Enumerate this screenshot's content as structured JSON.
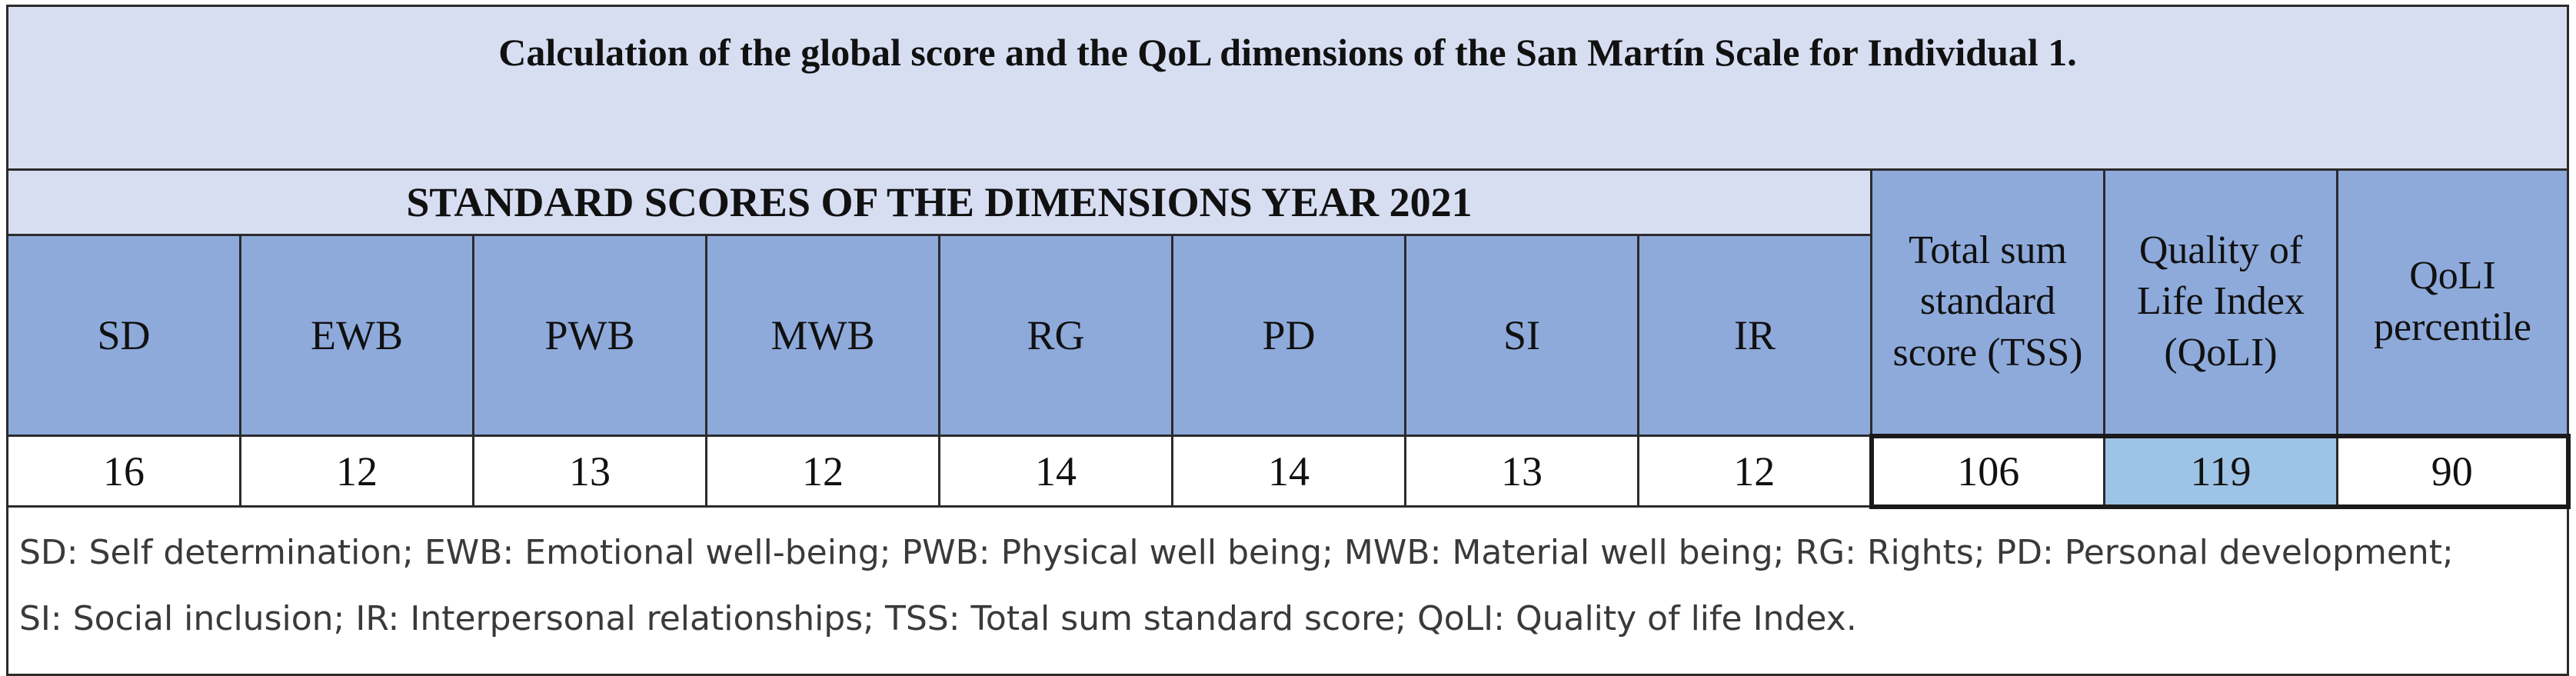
{
  "title": "Calculation of the global score and the QoL dimensions of the San Martín Scale for Individual 1.",
  "section_title": "STANDARD SCORES OF THE DIMENSIONS YEAR 2021",
  "dimension_headers": [
    "SD",
    "EWB",
    "PWB",
    "MWB",
    "RG",
    "PD",
    "SI",
    "IR"
  ],
  "dimension_values": [
    "16",
    "12",
    "13",
    "12",
    "14",
    "14",
    "13",
    "12"
  ],
  "summary_headers": {
    "tss": [
      "Total sum",
      "standard",
      "score  (TSS)"
    ],
    "qoli": [
      "Quality of",
      "Life Index",
      "(QoLI)"
    ],
    "percentile": [
      "QoLI",
      "percentile"
    ]
  },
  "summary_values": {
    "tss": "106",
    "qoli": "119",
    "percentile": "90"
  },
  "notes": [
    "SD: Self determination; EWB: Emotional well-being; PWB: Physical well being; MWB: Material well being; RG: Rights; PD: Personal development;",
    "SI: Social inclusion; IR: Interpersonal relationships; TSS: Total sum standard score; QoLI: Quality of life Index."
  ],
  "colors": {
    "title_bg": "#d8def2",
    "header_bg": "#8eaadb",
    "highlight_bg": "#9dc3e6"
  }
}
